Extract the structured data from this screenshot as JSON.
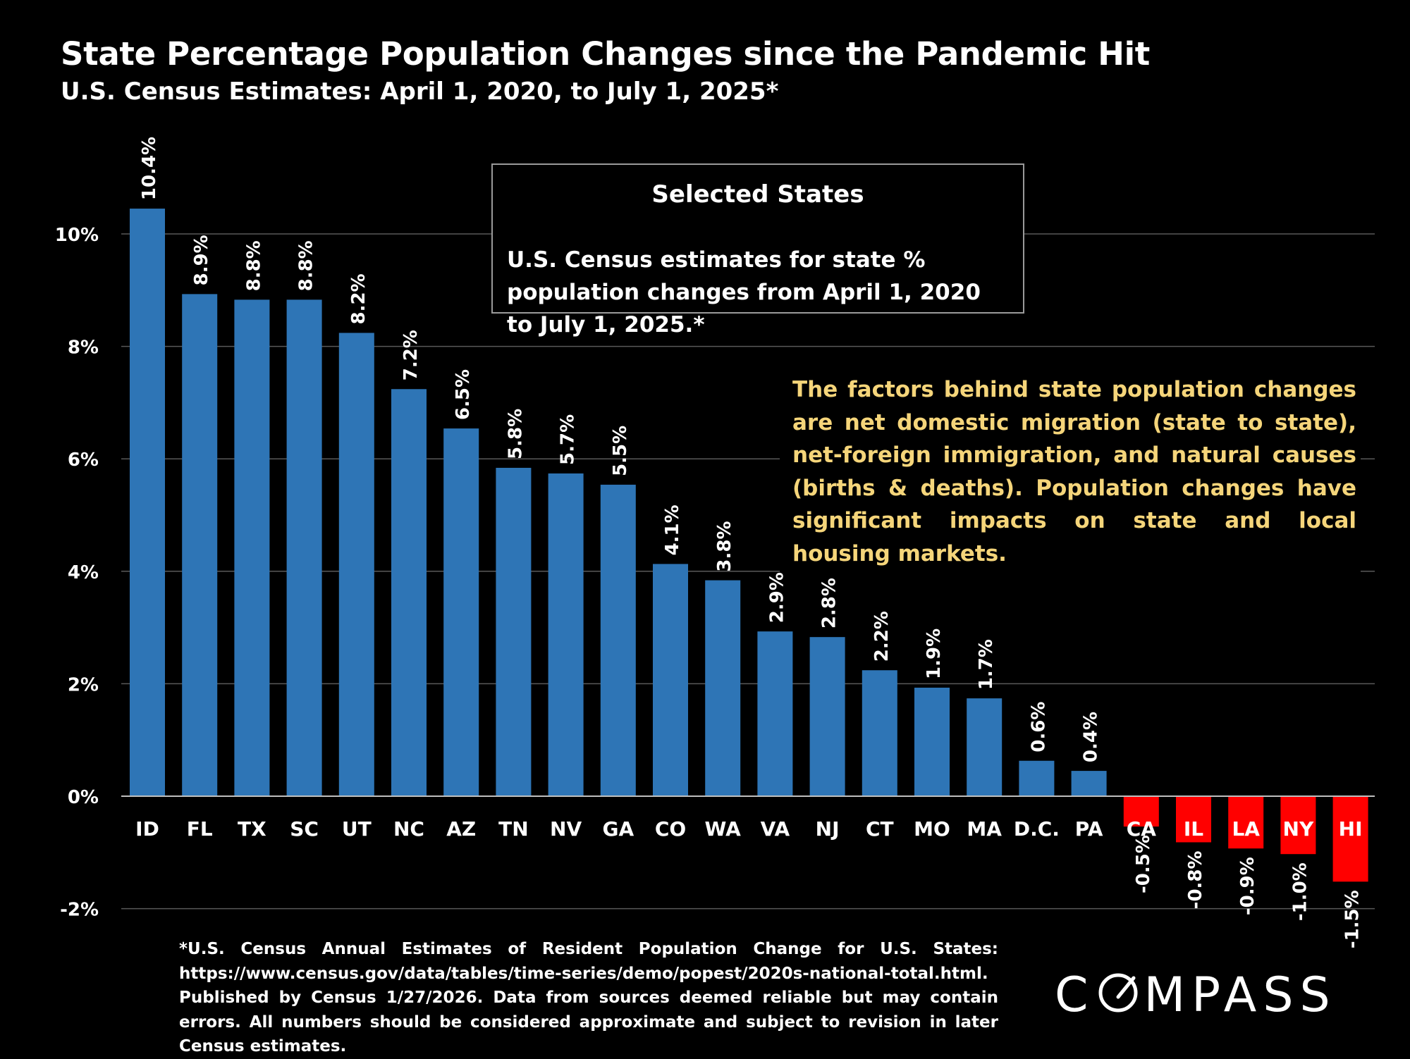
{
  "title": "State Percentage Population Changes since the Pandemic Hit",
  "subtitle": "U.S. Census Estimates: April 1, 2020, to July 1, 2025*",
  "colors": {
    "background": "#000000",
    "positive_bar": "#2e75b6",
    "negative_bar": "#ff0000",
    "gridline": "#595959",
    "text": "#ffffff",
    "factors_text": "#f5d57a"
  },
  "info_box": {
    "title": "Selected States",
    "body": "U.S. Census estimates for state % population changes from April 1, 2020 to July 1, 2025.*"
  },
  "factors_note": "The factors behind state population changes are net domestic migration (state to state), net-foreign immigration, and natural causes (births & deaths). Population changes have significant impacts on state and local housing markets.",
  "footnote": {
    "line1": "*U.S. Census Annual Estimates of Resident Population Change for U.S. States: https://www.census.gov/data/tables/time-series/demo/popest/2020s-national-total.html.",
    "line2": "Published by Census 1/27/2026. Data from sources deemed reliable but may contain errors. All numbers should be considered approximate and subject to revision in later Census estimates."
  },
  "logo": {
    "before": "C",
    "after": "MPASS",
    "icon": "compass-o-icon"
  },
  "chart_data": {
    "type": "bar",
    "title": "State Percentage Population Changes since the Pandemic Hit",
    "subtitle": "U.S. Census Estimates: April 1, 2020, to July 1, 2025*",
    "xlabel": "",
    "ylabel": "",
    "categories": [
      "ID",
      "FL",
      "TX",
      "SC",
      "UT",
      "NC",
      "AZ",
      "TN",
      "NV",
      "GA",
      "CO",
      "WA",
      "VA",
      "NJ",
      "CT",
      "MO",
      "MA",
      "D.C.",
      "PA",
      "CA",
      "IL",
      "LA",
      "NY",
      "HI"
    ],
    "values": [
      10.45,
      8.93,
      8.83,
      8.83,
      8.24,
      7.24,
      6.54,
      5.84,
      5.74,
      5.54,
      4.13,
      3.84,
      2.93,
      2.83,
      2.24,
      1.93,
      1.74,
      0.63,
      0.45,
      -0.54,
      -0.82,
      -0.93,
      -1.03,
      -1.52
    ],
    "data_labels": [
      "10.4%",
      "8.9%",
      "8.8%",
      "8.8%",
      "8.2%",
      "7.2%",
      "6.5%",
      "5.8%",
      "5.7%",
      "5.5%",
      "4.1%",
      "3.8%",
      "2.9%",
      "2.8%",
      "2.2%",
      "1.9%",
      "1.7%",
      "0.6%",
      "0.4%",
      "-0.5%",
      "-0.8%",
      "-0.9%",
      "-1.0%",
      "-1.5%"
    ],
    "ylim": [
      -2,
      10
    ],
    "yticks": [
      -2,
      0,
      2,
      4,
      6,
      8,
      10
    ],
    "ytick_labels": [
      "-2%",
      "0%",
      "2%",
      "4%",
      "6%",
      "8%",
      "10%"
    ],
    "grid": true,
    "legend": "none"
  }
}
